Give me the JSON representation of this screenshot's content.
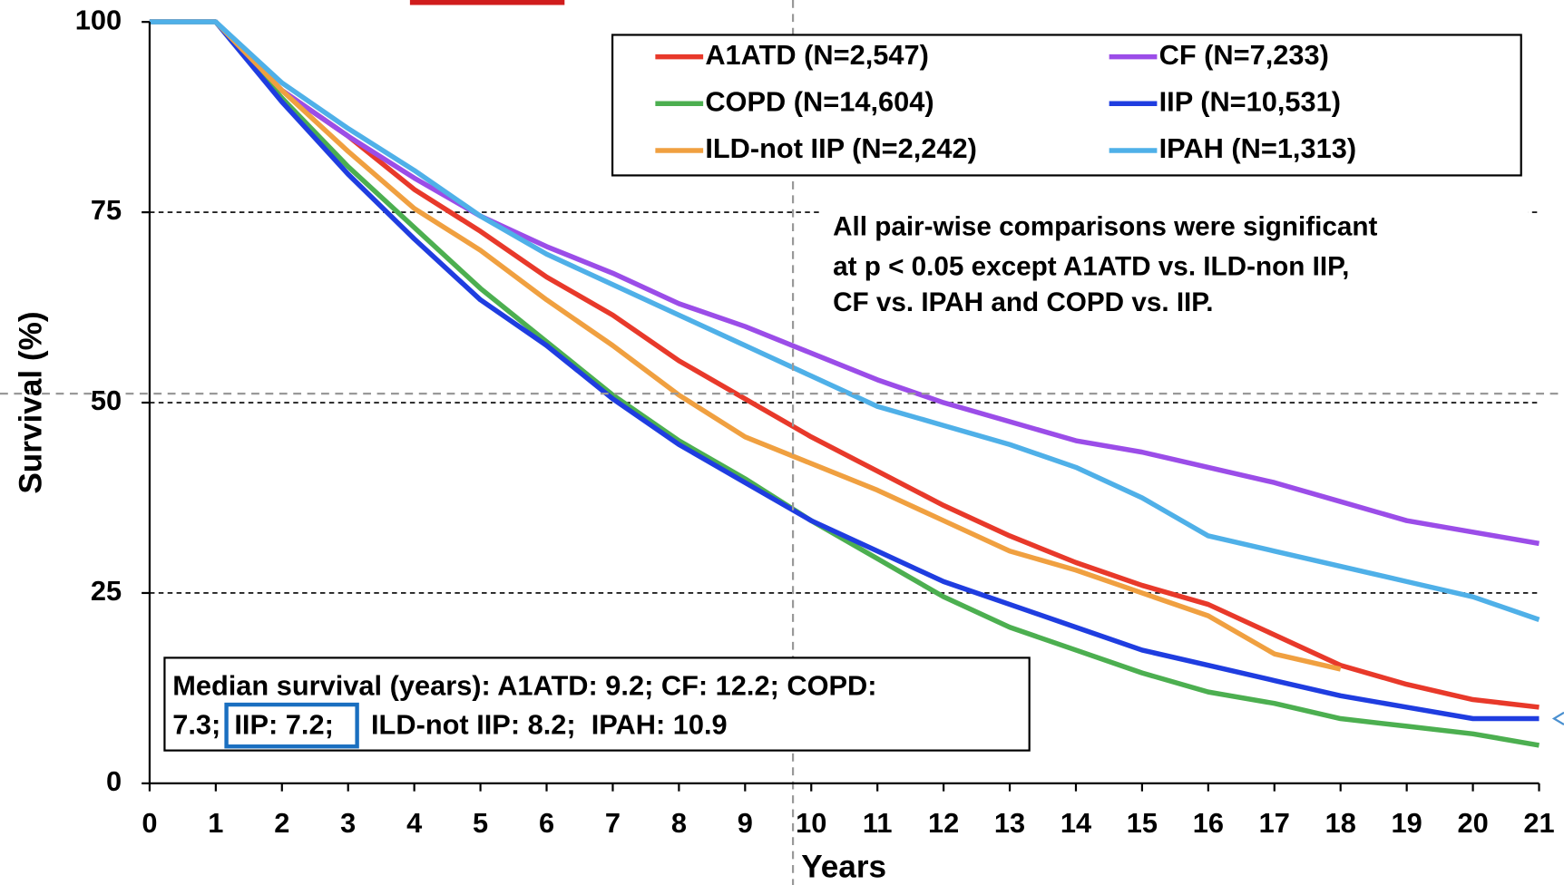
{
  "chart_data": {
    "type": "line",
    "x_label": "Years",
    "y_label": "Survival (%)",
    "x": [
      0,
      1,
      2,
      3,
      4,
      5,
      6,
      7,
      8,
      9,
      10,
      11,
      12,
      13,
      14,
      15,
      16,
      17,
      18,
      19,
      20,
      21
    ],
    "xlim": [
      0,
      21
    ],
    "xticks": [
      0,
      1,
      2,
      3,
      4,
      5,
      6,
      7,
      8,
      9,
      10,
      11,
      12,
      13,
      14,
      15,
      16,
      17,
      18,
      19,
      20,
      21
    ],
    "ylim": [
      0,
      100
    ],
    "yticks": [
      0,
      25,
      50,
      75,
      100
    ],
    "grid": true,
    "series": [
      {
        "name": "A1ATD (N=2,547)",
        "color": "#e8392a",
        "values": [
          100,
          100,
          91,
          85,
          78,
          72.5,
          66.5,
          61.5,
          55.5,
          50.5,
          45.5,
          41,
          36.5,
          32.5,
          29,
          26,
          23.5,
          19.5,
          15.5,
          13,
          11,
          10
        ]
      },
      {
        "name": "CF (N=7,233)",
        "color": "#9b4de8",
        "values": [
          100,
          100,
          91,
          85,
          79.5,
          74.5,
          70.5,
          67,
          63,
          60,
          56.5,
          53,
          50,
          47.5,
          45,
          43.5,
          41.5,
          39.5,
          37,
          34.5,
          33,
          31.5
        ]
      },
      {
        "name": "COPD (N=14,604)",
        "color": "#4caf50",
        "values": [
          100,
          100,
          90,
          81,
          73,
          65,
          58,
          51,
          45,
          40,
          34.5,
          29.5,
          24.5,
          20.5,
          17.5,
          14.5,
          12,
          10.5,
          8.5,
          7.5,
          6.5,
          5
        ]
      },
      {
        "name": "IIP (N=10,531)",
        "color": "#1f3de0",
        "values": [
          100,
          100,
          89.5,
          80,
          71.5,
          63.5,
          57.5,
          50.5,
          44.5,
          39.5,
          34.5,
          30.5,
          26.5,
          23.5,
          20.5,
          17.5,
          15.5,
          13.5,
          11.5,
          10,
          8.5,
          8.5
        ]
      },
      {
        "name": "ILD-not IIP (N=2,242)",
        "color": "#f0a040",
        "values": [
          100,
          100,
          91,
          83,
          75.5,
          70,
          63.5,
          57.5,
          51,
          45.5,
          42,
          38.5,
          34.5,
          30.5,
          28,
          25,
          22,
          17,
          15,
          null,
          null,
          null
        ]
      },
      {
        "name": "IPAH (N=1,313)",
        "color": "#4fb0e8",
        "values": [
          100,
          100,
          92,
          86,
          80.5,
          74.5,
          69.5,
          65.5,
          61.5,
          57.5,
          53.5,
          49.5,
          47,
          44.5,
          41.5,
          37.5,
          32.5,
          30.5,
          28.5,
          26.5,
          24.5,
          21.5
        ]
      }
    ],
    "annotation": [
      "All pair-wise comparisons were significant",
      "at p < 0.05 except A1ATD vs. ILD-non IIP,",
      "CF vs. IPAH and COPD vs. IIP."
    ],
    "median_box": [
      "Median survival (years): A1ATD: 9.2; CF: 12.2; COPD:",
      "7.3;",
      "IIP: 7.2;",
      "ILD-not IIP: 8.2;  IPAH: 10.9"
    ]
  }
}
